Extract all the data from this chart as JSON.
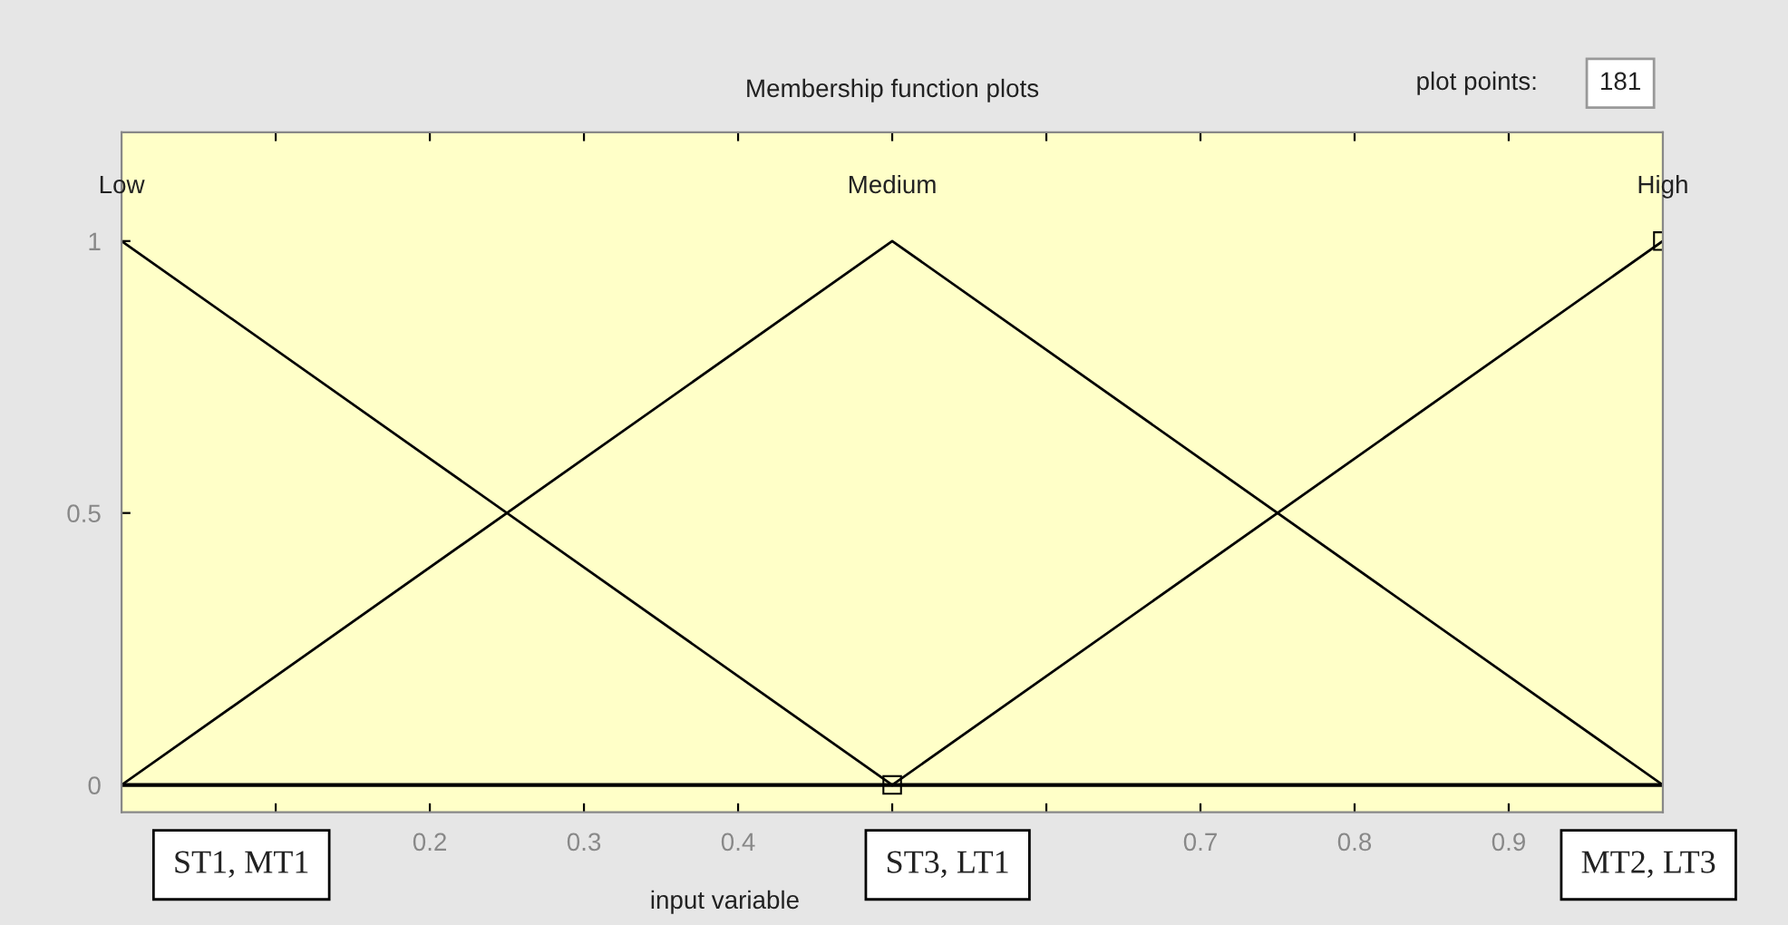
{
  "chart_data": {
    "type": "line",
    "title": "Membership function plots",
    "xlabel": "input variable",
    "series": [
      {
        "name": "Low",
        "color": "#000000",
        "x": [
          0,
          0.5
        ],
        "values": [
          1,
          0
        ]
      },
      {
        "name": "Medium",
        "color": "#000000",
        "x": [
          0,
          0.5,
          1
        ],
        "values": [
          0,
          1,
          0
        ]
      },
      {
        "name": "High",
        "color": "#000000",
        "x": [
          0.5,
          1
        ],
        "values": [
          0,
          1
        ],
        "marker": "square"
      }
    ],
    "xlim": [
      0,
      1
    ],
    "ylim": [
      -0.05,
      1.2
    ],
    "xticks": [
      {
        "value": 0.1,
        "label": null
      },
      0.2,
      0.3,
      0.4,
      {
        "value": 0.5,
        "label": null
      },
      {
        "value": 0.6,
        "label": null
      },
      0.7,
      0.8,
      0.9
    ],
    "yticks": [
      0,
      0.5,
      1
    ],
    "ref_lines": [
      {
        "axis": "y",
        "value": 0,
        "color": "#000000"
      }
    ],
    "grid": false,
    "annotations": [
      "ST1, MT1",
      "ST3, LT1",
      "MT2, LT3",
      "plot points:",
      "181"
    ]
  }
}
